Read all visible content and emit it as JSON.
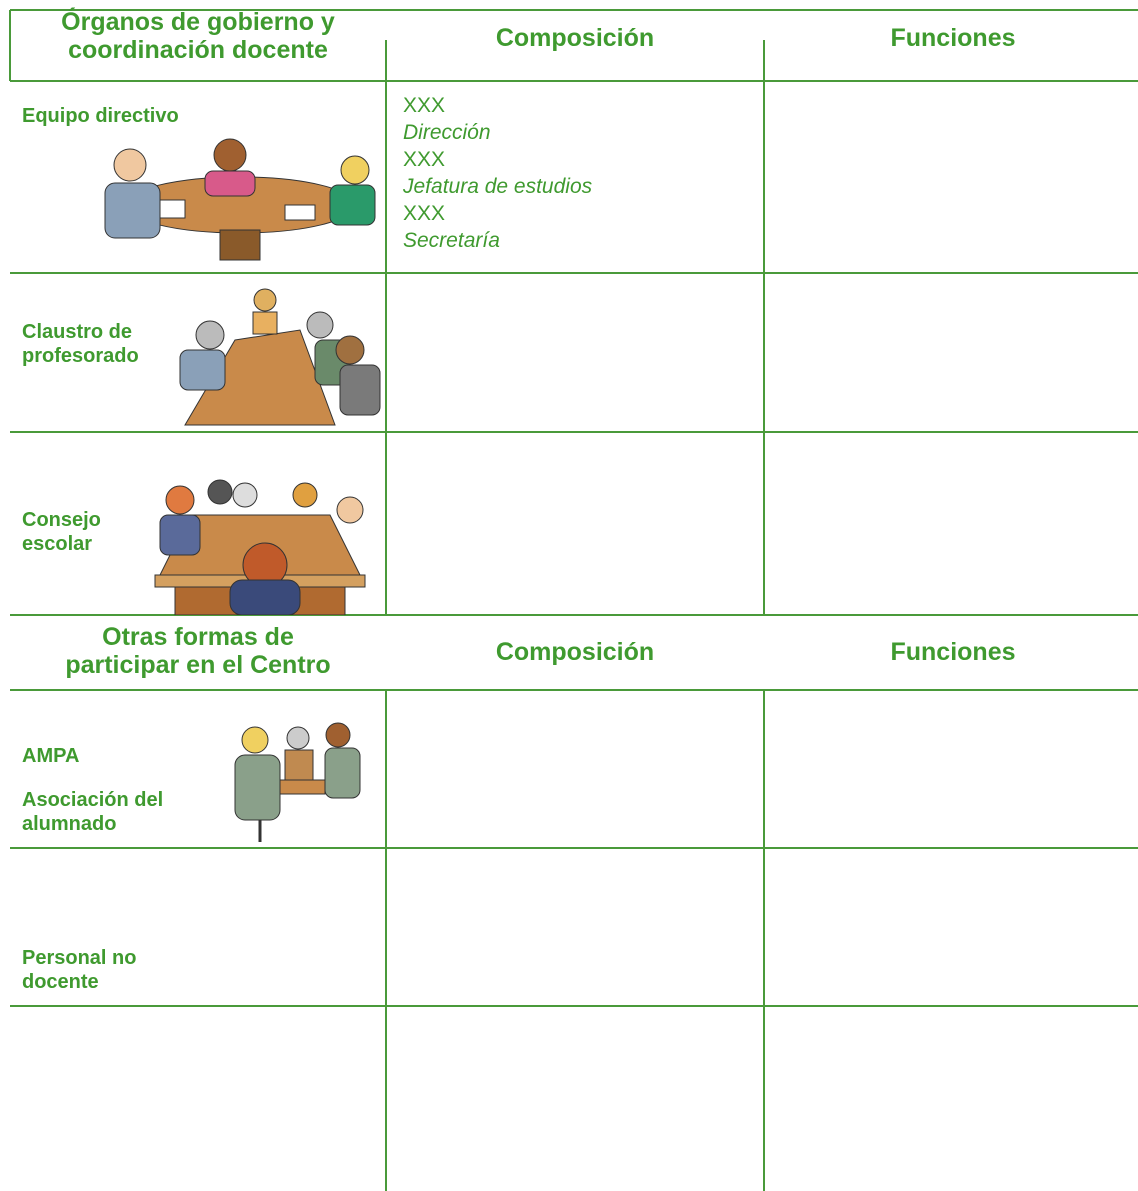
{
  "table1": {
    "header": [
      [
        "Órganos de gobierno y",
        "coordinación docente"
      ],
      "Composición",
      "Funciones"
    ],
    "rows": [
      {
        "label": [
          "Equipo directivo"
        ],
        "composition": [
          "XXX",
          "Dirección",
          "XXX",
          "Jefatura de estudios",
          "XXX",
          "Secretaría"
        ]
      },
      {
        "label": [
          "Claustro de",
          "profesorado"
        ]
      },
      {
        "label": [
          "Consejo",
          "escolar"
        ]
      }
    ]
  },
  "table2": {
    "header": [
      [
        "Otras formas de",
        "participar en el Centro"
      ],
      "Composición",
      "Funciones"
    ],
    "rows": [
      {
        "label": [
          "AMPA"
        ]
      },
      {
        "label": [
          "Asociación del",
          "alumnado"
        ]
      },
      {
        "label": [
          "Personal no",
          "docente"
        ]
      }
    ]
  }
}
